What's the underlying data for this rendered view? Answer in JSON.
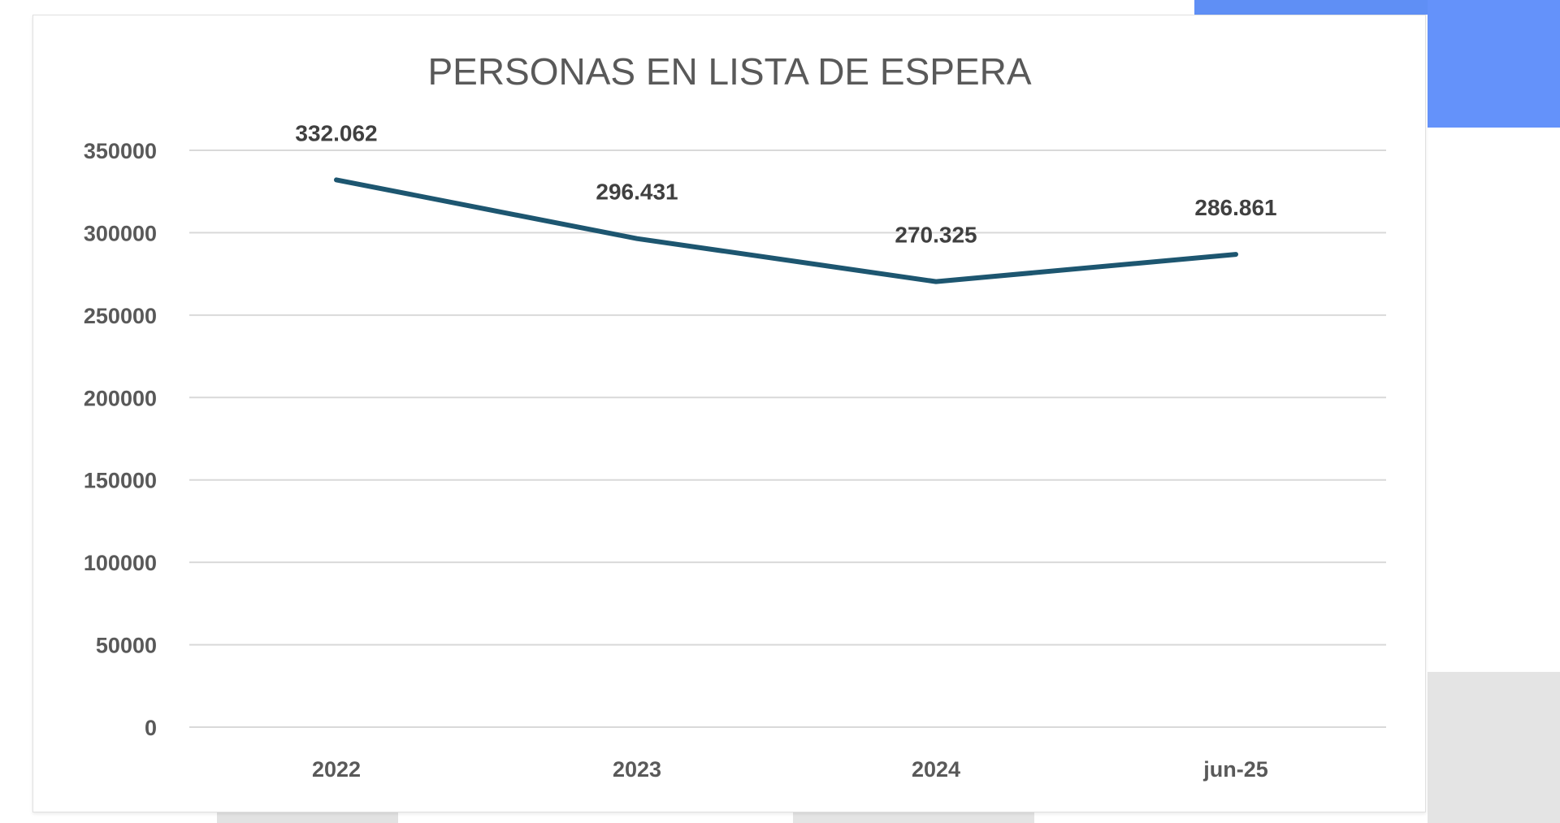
{
  "chart_data": {
    "type": "line",
    "title": "PERSONAS EN LISTA DE ESPERA",
    "categories": [
      "2022",
      "2023",
      "2024",
      "jun-25"
    ],
    "series": [
      {
        "values": [
          332062,
          296431,
          270325,
          286861
        ],
        "data_labels": [
          "332.062",
          "296.431",
          "270.325",
          "286.861"
        ],
        "color": "#1d5670"
      }
    ],
    "yticks": [
      "0",
      "50000",
      "100000",
      "150000",
      "200000",
      "250000",
      "300000",
      "350000"
    ],
    "ylim": [
      0,
      350000
    ],
    "grid": true,
    "legend": "none",
    "xlabel": "",
    "ylabel": ""
  },
  "colors": {
    "panel_blue": "#6492fa",
    "gridline": "#d9d9d9"
  }
}
